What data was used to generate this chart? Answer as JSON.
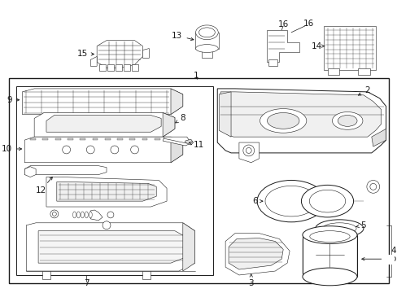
{
  "bg_color": "#ffffff",
  "line_color": "#1a1a1a",
  "fig_width": 4.89,
  "fig_height": 3.6,
  "dpi": 100,
  "label_fs": 7.5,
  "title_fs": 6.5
}
